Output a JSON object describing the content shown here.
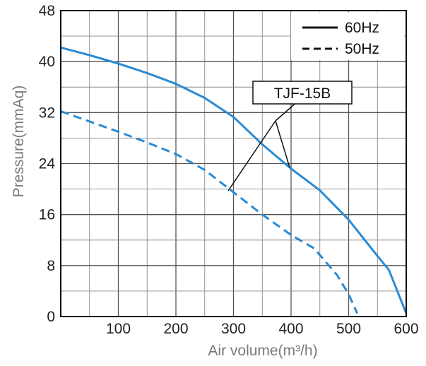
{
  "chart_data": {
    "type": "line",
    "xlabel": "Air volume(m³/h)",
    "ylabel": "Pressure(mmAq)",
    "xlim": [
      0,
      600
    ],
    "ylim": [
      0,
      48
    ],
    "x_ticks": [
      100,
      200,
      300,
      400,
      500,
      600
    ],
    "y_ticks": [
      0,
      8,
      16,
      24,
      32,
      40,
      48
    ],
    "x_minor_step": 50,
    "y_minor_step": 4,
    "grid": true,
    "legend_position": "top-right",
    "annotation": "TJF-15B",
    "series": [
      {
        "name": "60Hz",
        "line_style": "solid",
        "color": "#2a8ad4",
        "points": [
          [
            0,
            42.2
          ],
          [
            50,
            41
          ],
          [
            100,
            39.7
          ],
          [
            150,
            38.2
          ],
          [
            200,
            36.5
          ],
          [
            250,
            34.3
          ],
          [
            300,
            31.3
          ],
          [
            350,
            27
          ],
          [
            400,
            23.2
          ],
          [
            450,
            19.8
          ],
          [
            500,
            15.2
          ],
          [
            550,
            9.5
          ],
          [
            570,
            7.3
          ],
          [
            600,
            0.5
          ]
        ]
      },
      {
        "name": "50Hz",
        "line_style": "dashed",
        "color": "#2a8ad4",
        "points": [
          [
            0,
            32.2
          ],
          [
            50,
            30.6
          ],
          [
            100,
            29
          ],
          [
            150,
            27.3
          ],
          [
            200,
            25.5
          ],
          [
            250,
            23
          ],
          [
            300,
            19.5
          ],
          [
            350,
            16
          ],
          [
            400,
            12.8
          ],
          [
            440,
            10.7
          ],
          [
            480,
            6.5
          ],
          [
            500,
            3.5
          ],
          [
            515,
            0.5
          ]
        ]
      }
    ]
  }
}
